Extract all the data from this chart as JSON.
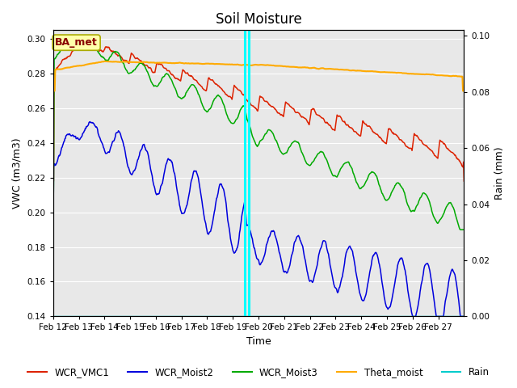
{
  "title": "Soil Moisture",
  "xlabel": "Time",
  "ylabel_left": "VWC (m3/m3)",
  "ylabel_right": "Rain (mm)",
  "ylim_left": [
    0.14,
    0.305
  ],
  "ylim_right": [
    0.0,
    0.102
  ],
  "yticks_left": [
    0.14,
    0.16,
    0.18,
    0.2,
    0.22,
    0.24,
    0.26,
    0.28,
    0.3
  ],
  "yticks_right": [
    0.0,
    0.02,
    0.04,
    0.06,
    0.08,
    0.1
  ],
  "xtick_labels": [
    "Feb 12",
    "Feb 13",
    "Feb 14",
    "Feb 15",
    "Feb 16",
    "Feb 17",
    "Feb 18",
    "Feb 19",
    "Feb 20",
    "Feb 21",
    "Feb 22",
    "Feb 23",
    "Feb 24",
    "Feb 25",
    "Feb 26",
    "Feb 27"
  ],
  "num_days": 16,
  "colors": {
    "WCR_VMC1": "#dd2200",
    "WCR_Moist2": "#0000dd",
    "WCR_Moist3": "#00aa00",
    "Theta_moist": "#ffaa00",
    "Rain": "#00cccc",
    "vline": "cyan",
    "background": "#e8e8e8",
    "annotation_bg": "#ffffaa",
    "annotation_border": "#aaaa00",
    "annotation_text": "#880000"
  },
  "annotation_text": "BA_met",
  "vline_x": [
    7.45,
    7.62
  ],
  "grid_color": "#ffffff",
  "title_fontsize": 12,
  "axis_fontsize": 9,
  "tick_fontsize": 7.5
}
